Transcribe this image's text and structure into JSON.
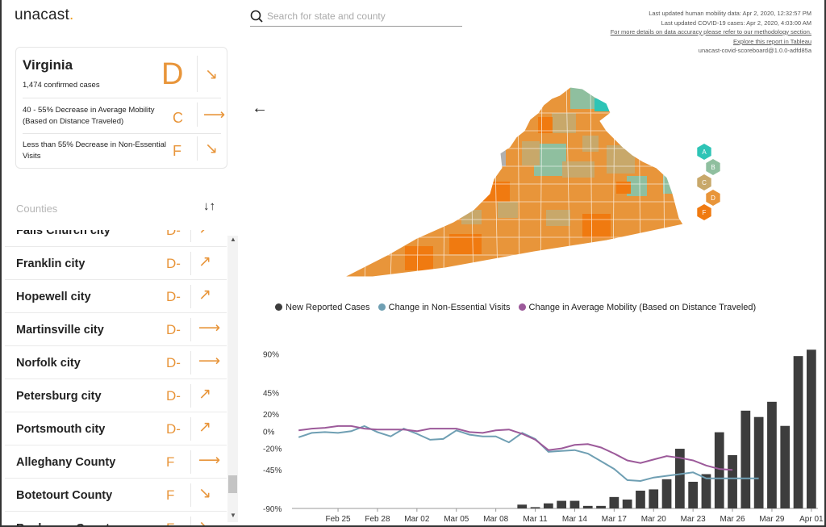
{
  "app": {
    "logo_text": "unacast",
    "logo_dot": ".",
    "accent_color": "#e8953a"
  },
  "search": {
    "placeholder": "Search for state and county",
    "value": ""
  },
  "meta": {
    "line1": "Last updated human mobility data: Apr 2, 2020, 12:32:57 PM",
    "line2": "Last updated COVID-19 cases: Apr 2, 2020, 4:03:00 AM",
    "line3": "For more details on data accuracy please refer to our methodology section.",
    "line4": "Explore this report in Tableau",
    "line5": "unacast-covid-scoreboard@1.0.0-adfd85a"
  },
  "state": {
    "name": "Virginia",
    "cases": "1,474 confirmed cases",
    "grade": "D",
    "trend": "down",
    "metrics": [
      {
        "text": "40 - 55% Decrease in Average Mobility (Based on Distance Traveled)",
        "grade": "C",
        "trend": "flat"
      },
      {
        "text": "Less than 55% Decrease in Non-Essential Visits",
        "grade": "F",
        "trend": "down"
      }
    ]
  },
  "counties": {
    "label": "Counties",
    "rows": [
      {
        "name": "Falls Church city",
        "grade": "D-",
        "trend": "up"
      },
      {
        "name": "Franklin city",
        "grade": "D-",
        "trend": "up"
      },
      {
        "name": "Hopewell city",
        "grade": "D-",
        "trend": "up"
      },
      {
        "name": "Martinsville city",
        "grade": "D-",
        "trend": "flat"
      },
      {
        "name": "Norfolk city",
        "grade": "D-",
        "trend": "flat"
      },
      {
        "name": "Petersburg city",
        "grade": "D-",
        "trend": "up"
      },
      {
        "name": "Portsmouth city",
        "grade": "D-",
        "trend": "up"
      },
      {
        "name": "Alleghany County",
        "grade": "F",
        "trend": "flat"
      },
      {
        "name": "Botetourt County",
        "grade": "F",
        "trend": "down"
      },
      {
        "name": "Buchanan County",
        "grade": "F",
        "trend": "down"
      }
    ]
  },
  "grade_legend": [
    {
      "grade": "A",
      "color": "#2ec4b6"
    },
    {
      "grade": "B",
      "color": "#8fbf9f"
    },
    {
      "grade": "C",
      "color": "#c8a86a"
    },
    {
      "grade": "D",
      "color": "#e8953a"
    },
    {
      "grade": "F",
      "color": "#f07a10"
    }
  ],
  "chart_data": {
    "type": "bar",
    "title": "",
    "xlabel": "",
    "ylabel": "",
    "legend_position": "top",
    "series": [
      {
        "name": "New Reported Cases",
        "color": "#3d3d3d",
        "kind": "bar"
      },
      {
        "name": "Change in Non-Essential Visits",
        "color": "#6f9fb3",
        "kind": "line"
      },
      {
        "name": "Change in Average Mobility (Based on Distance Traveled)",
        "color": "#9c5a9a",
        "kind": "line"
      }
    ],
    "y_ticks": [
      "90%",
      "45%",
      "20%",
      "0%",
      "-20%",
      "-45%",
      "-90%"
    ],
    "y_tick_values": [
      90,
      45,
      20,
      0,
      -20,
      -45,
      -90
    ],
    "x_ticks": [
      "Feb 25",
      "Feb 28",
      "Mar 02",
      "Mar 05",
      "Mar 08",
      "Mar 11",
      "Mar 14",
      "Mar 17",
      "Mar 20",
      "Mar 23",
      "Mar 26",
      "Mar 29",
      "Apr 01"
    ],
    "ylim": [
      -90,
      100
    ],
    "bar_values": [
      0,
      0,
      0,
      0,
      0,
      0,
      0,
      0,
      0,
      0,
      0,
      0,
      0,
      0,
      0,
      0,
      0,
      3,
      1,
      4,
      6,
      6,
      2,
      2,
      9,
      7,
      14,
      15,
      23,
      47,
      21,
      27,
      60,
      42,
      77,
      72,
      84,
      65,
      120,
      125
    ],
    "non_essential_visits": [
      -7,
      -2,
      -1,
      -2,
      0,
      6,
      -1,
      -6,
      3,
      -3,
      -10,
      -9,
      1,
      -4,
      -6,
      -6,
      -13,
      -2,
      -9,
      -24,
      -23,
      -22,
      -26,
      -35,
      -44,
      -57,
      -58,
      -54,
      -52,
      -50,
      -48,
      -55,
      -55,
      -55,
      -55,
      -55
    ],
    "average_mobility": [
      1,
      3,
      4,
      6,
      6,
      3,
      2,
      2,
      2,
      0,
      3,
      3,
      3,
      -1,
      -2,
      1,
      2,
      -3,
      -10,
      -22,
      -20,
      -16,
      -15,
      -19,
      -26,
      -34,
      -37,
      -33,
      -29,
      -31,
      -34,
      -40,
      -44,
      -45
    ]
  }
}
